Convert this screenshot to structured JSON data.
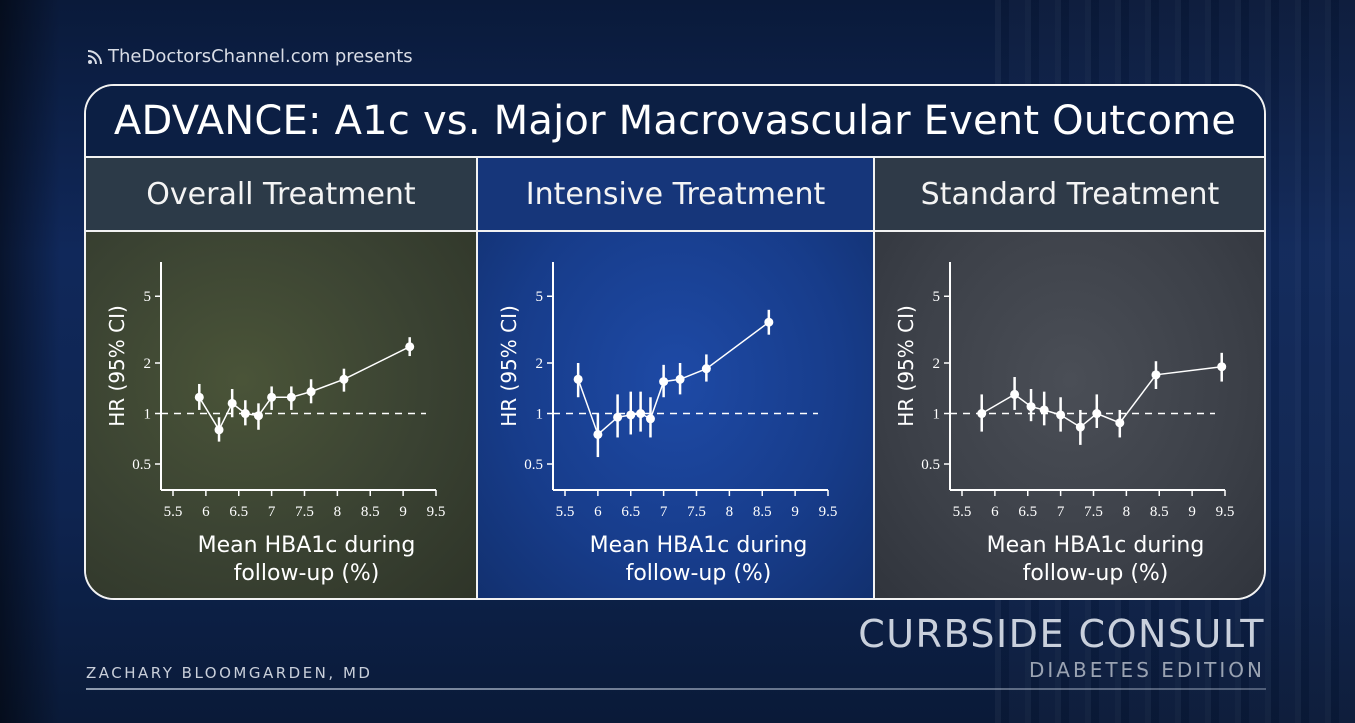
{
  "brand": {
    "text": "TheDoctorsChannel.com presents",
    "icon": "rss-icon"
  },
  "slide_title": "ADVANCE: A1c vs. Major Macrovascular Event Outcome",
  "footer": {
    "presenter": "ZACHARY BLOOMGARDEN, MD",
    "show_title": "CURBSIDE CONSULT",
    "show_subtitle": "DIABETES EDITION"
  },
  "chart_data": [
    {
      "type": "scatter",
      "panel_title": "Overall Treatment",
      "ylabel": "HR (95% CI)",
      "xlabel_line1": "Mean HBA1c during",
      "xlabel_line2": "follow-up (%)",
      "y_scale": "log",
      "ylim": [
        0.35,
        8
      ],
      "yticks": [
        0.5,
        1,
        2,
        5
      ],
      "xlim": [
        5.5,
        9.5
      ],
      "xticks": [
        5.5,
        6,
        6.5,
        7,
        7.5,
        8,
        8.5,
        9,
        9.5
      ],
      "reference_line": 1,
      "points": [
        {
          "x": 5.9,
          "y": 1.25,
          "lo": 1.05,
          "hi": 1.5
        },
        {
          "x": 6.2,
          "y": 0.8,
          "lo": 0.68,
          "hi": 0.95
        },
        {
          "x": 6.4,
          "y": 1.15,
          "lo": 0.95,
          "hi": 1.4
        },
        {
          "x": 6.6,
          "y": 1.0,
          "lo": 0.85,
          "hi": 1.2
        },
        {
          "x": 6.8,
          "y": 0.97,
          "lo": 0.8,
          "hi": 1.15
        },
        {
          "x": 7.0,
          "y": 1.25,
          "lo": 1.05,
          "hi": 1.45
        },
        {
          "x": 7.3,
          "y": 1.25,
          "lo": 1.05,
          "hi": 1.45
        },
        {
          "x": 7.6,
          "y": 1.35,
          "lo": 1.15,
          "hi": 1.6
        },
        {
          "x": 8.1,
          "y": 1.6,
          "lo": 1.35,
          "hi": 1.85
        },
        {
          "x": 9.1,
          "y": 2.5,
          "lo": 2.2,
          "hi": 2.85
        }
      ]
    },
    {
      "type": "scatter",
      "panel_title": "Intensive Treatment",
      "ylabel": "HR (95% CI)",
      "xlabel_line1": "Mean HBA1c during",
      "xlabel_line2": "follow-up (%)",
      "y_scale": "log",
      "ylim": [
        0.35,
        8
      ],
      "yticks": [
        0.5,
        1,
        2,
        5
      ],
      "xlim": [
        5.5,
        9.5
      ],
      "xticks": [
        5.5,
        6,
        6.5,
        7,
        7.5,
        8,
        8.5,
        9,
        9.5
      ],
      "reference_line": 1,
      "points": [
        {
          "x": 5.7,
          "y": 1.6,
          "lo": 1.25,
          "hi": 2.0
        },
        {
          "x": 6.0,
          "y": 0.75,
          "lo": 0.55,
          "hi": 1.0
        },
        {
          "x": 6.3,
          "y": 0.95,
          "lo": 0.72,
          "hi": 1.3
        },
        {
          "x": 6.5,
          "y": 0.98,
          "lo": 0.75,
          "hi": 1.35
        },
        {
          "x": 6.65,
          "y": 1.0,
          "lo": 0.78,
          "hi": 1.35
        },
        {
          "x": 6.8,
          "y": 0.93,
          "lo": 0.72,
          "hi": 1.25
        },
        {
          "x": 7.0,
          "y": 1.55,
          "lo": 1.25,
          "hi": 1.95
        },
        {
          "x": 7.25,
          "y": 1.6,
          "lo": 1.3,
          "hi": 2.0
        },
        {
          "x": 7.65,
          "y": 1.85,
          "lo": 1.55,
          "hi": 2.25
        },
        {
          "x": 8.6,
          "y": 3.5,
          "lo": 2.95,
          "hi": 4.15
        }
      ]
    },
    {
      "type": "scatter",
      "panel_title": "Standard Treatment",
      "ylabel": "HR (95% CI)",
      "xlabel_line1": "Mean HBA1c during",
      "xlabel_line2": "follow-up (%)",
      "y_scale": "log",
      "ylim": [
        0.35,
        8
      ],
      "yticks": [
        0.5,
        1,
        2,
        5
      ],
      "xlim": [
        5.5,
        9.5
      ],
      "xticks": [
        5.5,
        6,
        6.5,
        7,
        7.5,
        8,
        8.5,
        9,
        9.5
      ],
      "reference_line": 1,
      "points": [
        {
          "x": 5.8,
          "y": 1.0,
          "lo": 0.78,
          "hi": 1.3
        },
        {
          "x": 6.3,
          "y": 1.3,
          "lo": 1.05,
          "hi": 1.65
        },
        {
          "x": 6.55,
          "y": 1.1,
          "lo": 0.9,
          "hi": 1.4
        },
        {
          "x": 6.75,
          "y": 1.05,
          "lo": 0.85,
          "hi": 1.35
        },
        {
          "x": 7.0,
          "y": 0.98,
          "lo": 0.78,
          "hi": 1.25
        },
        {
          "x": 7.3,
          "y": 0.83,
          "lo": 0.65,
          "hi": 1.05
        },
        {
          "x": 7.55,
          "y": 1.0,
          "lo": 0.82,
          "hi": 1.3
        },
        {
          "x": 7.9,
          "y": 0.88,
          "lo": 0.72,
          "hi": 1.05
        },
        {
          "x": 8.45,
          "y": 1.7,
          "lo": 1.4,
          "hi": 2.05
        },
        {
          "x": 9.45,
          "y": 1.9,
          "lo": 1.55,
          "hi": 2.3
        }
      ]
    }
  ]
}
